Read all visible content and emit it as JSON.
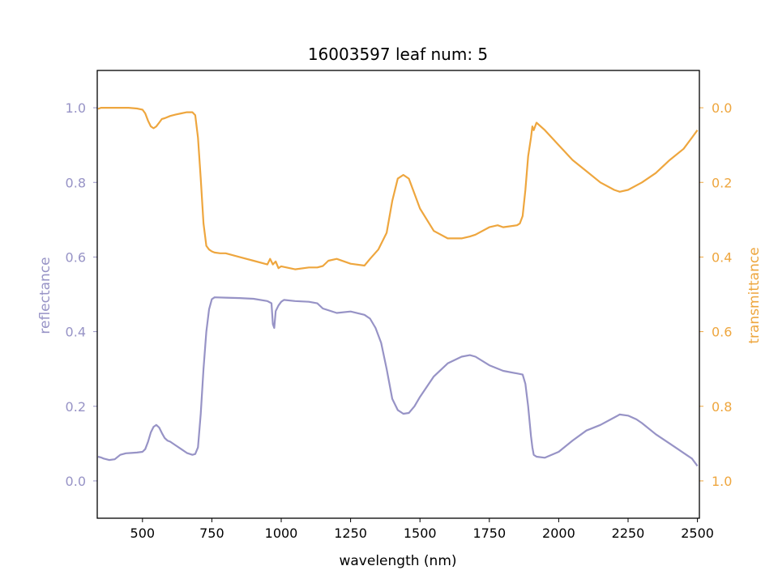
{
  "chart_data": {
    "type": "line",
    "title": "16003597 leaf num: 5",
    "xlabel": "wavelength (nm)",
    "ylabel": "reflectance",
    "y2label": "transmittance",
    "xlim": [
      337,
      2507
    ],
    "ylim": [
      -0.1,
      1.1
    ],
    "y2lim": [
      1.1,
      -0.1
    ],
    "y2_inverted": true,
    "xticks": [
      500,
      750,
      1000,
      1250,
      1500,
      1750,
      2000,
      2250,
      2500
    ],
    "yticks": [
      0.0,
      0.2,
      0.4,
      0.6,
      0.8,
      1.0
    ],
    "y2ticks": [
      0.0,
      0.2,
      0.4,
      0.6,
      0.8,
      1.0
    ],
    "grid": false,
    "colors": {
      "reflectance": "#9793c6",
      "transmittance": "#eea63e",
      "frame": "#000000"
    },
    "series": [
      {
        "name": "reflectance",
        "axis": "left",
        "x": [
          340,
          350,
          360,
          380,
          400,
          420,
          440,
          460,
          480,
          500,
          510,
          520,
          530,
          540,
          550,
          560,
          570,
          580,
          590,
          600,
          620,
          640,
          660,
          680,
          690,
          700,
          710,
          720,
          730,
          740,
          750,
          760,
          800,
          850,
          900,
          950,
          960,
          965,
          970,
          975,
          980,
          990,
          1000,
          1010,
          1050,
          1100,
          1130,
          1150,
          1200,
          1250,
          1300,
          1320,
          1340,
          1360,
          1380,
          1400,
          1420,
          1440,
          1460,
          1480,
          1500,
          1550,
          1600,
          1650,
          1680,
          1700,
          1750,
          1800,
          1850,
          1870,
          1880,
          1890,
          1900,
          1905,
          1910,
          1920,
          1950,
          2000,
          2050,
          2100,
          2150,
          2200,
          2220,
          2250,
          2280,
          2300,
          2350,
          2400,
          2430,
          2460,
          2480,
          2500
        ],
        "y": [
          0.065,
          0.063,
          0.06,
          0.056,
          0.058,
          0.07,
          0.074,
          0.075,
          0.076,
          0.078,
          0.085,
          0.105,
          0.13,
          0.145,
          0.15,
          0.143,
          0.128,
          0.115,
          0.108,
          0.105,
          0.095,
          0.085,
          0.075,
          0.07,
          0.072,
          0.09,
          0.18,
          0.3,
          0.4,
          0.46,
          0.487,
          0.492,
          0.491,
          0.49,
          0.488,
          0.482,
          0.478,
          0.476,
          0.42,
          0.41,
          0.455,
          0.47,
          0.48,
          0.485,
          0.482,
          0.48,
          0.476,
          0.462,
          0.45,
          0.454,
          0.445,
          0.435,
          0.41,
          0.37,
          0.3,
          0.22,
          0.19,
          0.18,
          0.182,
          0.2,
          0.225,
          0.28,
          0.315,
          0.333,
          0.337,
          0.333,
          0.31,
          0.295,
          0.288,
          0.285,
          0.26,
          0.2,
          0.12,
          0.09,
          0.07,
          0.065,
          0.062,
          0.078,
          0.108,
          0.135,
          0.15,
          0.17,
          0.178,
          0.175,
          0.165,
          0.155,
          0.125,
          0.1,
          0.085,
          0.07,
          0.06,
          0.04
        ]
      },
      {
        "name": "transmittance",
        "axis": "right",
        "x": [
          340,
          350,
          400,
          450,
          480,
          500,
          510,
          520,
          530,
          540,
          550,
          560,
          570,
          580,
          600,
          620,
          640,
          660,
          680,
          690,
          700,
          710,
          720,
          730,
          740,
          750,
          760,
          780,
          800,
          850,
          900,
          950,
          960,
          970,
          980,
          990,
          1000,
          1050,
          1100,
          1130,
          1150,
          1170,
          1200,
          1250,
          1300,
          1320,
          1350,
          1380,
          1400,
          1420,
          1440,
          1460,
          1480,
          1500,
          1550,
          1600,
          1650,
          1680,
          1700,
          1750,
          1780,
          1800,
          1850,
          1860,
          1870,
          1880,
          1890,
          1900,
          1905,
          1910,
          1920,
          1950,
          2000,
          2050,
          2100,
          2150,
          2200,
          2220,
          2250,
          2300,
          2350,
          2400,
          2450,
          2480,
          2500
        ],
        "y": [
          0.003,
          0.0,
          0.0,
          0.0,
          0.002,
          0.005,
          0.015,
          0.035,
          0.05,
          0.055,
          0.05,
          0.04,
          0.03,
          0.028,
          0.022,
          0.018,
          0.015,
          0.012,
          0.012,
          0.02,
          0.08,
          0.19,
          0.31,
          0.37,
          0.38,
          0.385,
          0.388,
          0.39,
          0.39,
          0.4,
          0.41,
          0.42,
          0.405,
          0.42,
          0.412,
          0.43,
          0.425,
          0.433,
          0.428,
          0.428,
          0.424,
          0.41,
          0.405,
          0.418,
          0.423,
          0.405,
          0.38,
          0.335,
          0.25,
          0.19,
          0.18,
          0.19,
          0.23,
          0.27,
          0.33,
          0.35,
          0.35,
          0.345,
          0.34,
          0.32,
          0.315,
          0.32,
          0.315,
          0.31,
          0.29,
          0.22,
          0.13,
          0.08,
          0.05,
          0.06,
          0.04,
          0.06,
          0.1,
          0.14,
          0.17,
          0.2,
          0.22,
          0.225,
          0.22,
          0.2,
          0.175,
          0.14,
          0.11,
          0.08,
          0.06
        ]
      }
    ]
  }
}
